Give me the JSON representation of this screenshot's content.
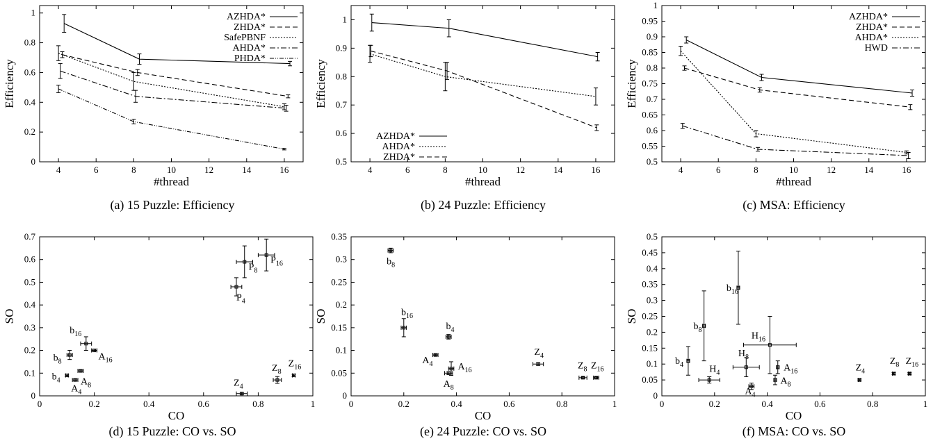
{
  "chart_data": [
    {
      "id": "a",
      "type": "line",
      "caption": "(a) 15 Puzzle: Efficiency",
      "xlabel": "#thread",
      "ylabel": "Efficiency",
      "xlim": [
        3,
        17
      ],
      "ylim": [
        0,
        1.05
      ],
      "xticks": [
        4,
        6,
        8,
        10,
        12,
        14,
        16
      ],
      "yticks": [
        0,
        0.2,
        0.4,
        0.6,
        0.8,
        1
      ],
      "legend_position": "top-right",
      "series": [
        {
          "name": "AZHDA*",
          "dash": "",
          "points": [
            {
              "x": 4.3,
              "y": 0.93,
              "err": 0.06
            },
            {
              "x": 8.3,
              "y": 0.69,
              "err": 0.035
            },
            {
              "x": 16.3,
              "y": 0.66,
              "err": 0.015
            }
          ]
        },
        {
          "name": "ZHDA*",
          "dash": "7,4",
          "points": [
            {
              "x": 4.2,
              "y": 0.72,
              "err": 0.02
            },
            {
              "x": 8.2,
              "y": 0.6,
              "err": 0.02
            },
            {
              "x": 16.2,
              "y": 0.44,
              "err": 0.01
            }
          ]
        },
        {
          "name": "SafePBNF",
          "dash": "2,2",
          "points": [
            {
              "x": 4.0,
              "y": 0.73,
              "err": 0.05
            },
            {
              "x": 8.0,
              "y": 0.54,
              "err": 0.06
            },
            {
              "x": 16.0,
              "y": 0.37,
              "err": 0.02
            }
          ]
        },
        {
          "name": "AHDA*",
          "dash": "8,3,2,3",
          "points": [
            {
              "x": 4.1,
              "y": 0.61,
              "err": 0.05
            },
            {
              "x": 8.1,
              "y": 0.44,
              "err": 0.04
            },
            {
              "x": 16.1,
              "y": 0.36,
              "err": 0.02
            }
          ]
        },
        {
          "name": "PHDA*",
          "dash": "6,2,1,2,1,2",
          "points": [
            {
              "x": 4.0,
              "y": 0.49,
              "err": 0.025
            },
            {
              "x": 8.0,
              "y": 0.27,
              "err": 0.015
            },
            {
              "x": 16.0,
              "y": 0.085,
              "err": 0.005
            }
          ]
        }
      ]
    },
    {
      "id": "b",
      "type": "line",
      "caption": "(b) 24 Puzzle: Efficiency",
      "xlabel": "#thread",
      "ylabel": "Efficiency",
      "xlim": [
        3,
        17
      ],
      "ylim": [
        0.5,
        1.05
      ],
      "xticks": [
        4,
        6,
        8,
        10,
        12,
        14,
        16
      ],
      "yticks": [
        0.5,
        0.6,
        0.7,
        0.8,
        0.9,
        1
      ],
      "legend_position": "bottom-left",
      "series": [
        {
          "name": "AZHDA*",
          "dash": "",
          "points": [
            {
              "x": 4.1,
              "y": 0.99,
              "err": 0.03
            },
            {
              "x": 8.2,
              "y": 0.97,
              "err": 0.03
            },
            {
              "x": 16.1,
              "y": 0.87,
              "err": 0.015
            }
          ]
        },
        {
          "name": "AHDA*",
          "dash": "2,2",
          "points": [
            {
              "x": 4.0,
              "y": 0.88,
              "err": 0.03
            },
            {
              "x": 8.0,
              "y": 0.8,
              "err": 0.05
            },
            {
              "x": 16.0,
              "y": 0.73,
              "err": 0.03
            }
          ]
        },
        {
          "name": "ZHDA*",
          "dash": "7,4",
          "points": [
            {
              "x": 4.05,
              "y": 0.89,
              "err": 0.02
            },
            {
              "x": 8.1,
              "y": 0.82,
              "err": 0.03
            },
            {
              "x": 16.05,
              "y": 0.62,
              "err": 0.01
            }
          ]
        }
      ]
    },
    {
      "id": "c",
      "type": "line",
      "caption": "(c) MSA: Efficiency",
      "xlabel": "#thread",
      "ylabel": "Efficiency",
      "xlim": [
        3,
        17
      ],
      "ylim": [
        0.5,
        1.0
      ],
      "xticks": [
        4,
        6,
        8,
        10,
        12,
        14,
        16
      ],
      "yticks": [
        0.5,
        0.55,
        0.6,
        0.65,
        0.7,
        0.75,
        0.8,
        0.85,
        0.9,
        0.95,
        1
      ],
      "legend_position": "top-right",
      "series": [
        {
          "name": "AZHDA*",
          "dash": "",
          "points": [
            {
              "x": 4.3,
              "y": 0.89,
              "err": 0.01
            },
            {
              "x": 8.3,
              "y": 0.77,
              "err": 0.01
            },
            {
              "x": 16.3,
              "y": 0.72,
              "err": 0.01
            }
          ]
        },
        {
          "name": "ZHDA*",
          "dash": "7,4",
          "points": [
            {
              "x": 4.2,
              "y": 0.8,
              "err": 0.007
            },
            {
              "x": 8.2,
              "y": 0.73,
              "err": 0.007
            },
            {
              "x": 16.2,
              "y": 0.675,
              "err": 0.008
            }
          ]
        },
        {
          "name": "AHDA*",
          "dash": "2,2",
          "points": [
            {
              "x": 4.0,
              "y": 0.855,
              "err": 0.015
            },
            {
              "x": 8.0,
              "y": 0.59,
              "err": 0.01
            },
            {
              "x": 16.0,
              "y": 0.53,
              "err": 0.005
            }
          ]
        },
        {
          "name": "HWD",
          "dash": "8,3,2,3",
          "points": [
            {
              "x": 4.1,
              "y": 0.615,
              "err": 0.008
            },
            {
              "x": 8.1,
              "y": 0.54,
              "err": 0.006
            },
            {
              "x": 16.1,
              "y": 0.52,
              "err": 0.01
            }
          ]
        }
      ]
    },
    {
      "id": "d",
      "type": "scatter",
      "caption": "(d) 15 Puzzle: CO vs. SO",
      "xlabel": "CO",
      "ylabel": "SO",
      "xlim": [
        0,
        1
      ],
      "ylim": [
        0,
        0.7
      ],
      "xticks": [
        0,
        0.2,
        0.4,
        0.6,
        0.8,
        1
      ],
      "yticks": [
        0,
        0.1,
        0.2,
        0.3,
        0.4,
        0.5,
        0.6,
        0.7
      ],
      "points": [
        {
          "base": "b",
          "sub": "4",
          "x": 0.1,
          "y": 0.09,
          "xerr": 0.005,
          "yerr": 0.005,
          "lx": -0.055,
          "ly": -0.018
        },
        {
          "base": "b",
          "sub": "8",
          "x": 0.11,
          "y": 0.18,
          "xerr": 0.01,
          "yerr": 0.02,
          "lx": -0.06,
          "ly": -0.025
        },
        {
          "base": "b",
          "sub": "16",
          "x": 0.17,
          "y": 0.23,
          "xerr": 0.02,
          "yerr": 0.03,
          "lx": -0.06,
          "ly": 0.045
        },
        {
          "base": "A",
          "sub": "4",
          "x": 0.13,
          "y": 0.07,
          "xerr": 0.01,
          "yerr": 0.005,
          "lx": -0.015,
          "ly": -0.05
        },
        {
          "base": "A",
          "sub": "8",
          "x": 0.15,
          "y": 0.11,
          "xerr": 0.01,
          "yerr": 0.005,
          "lx": 0.0,
          "ly": -0.06
        },
        {
          "base": "A",
          "sub": "16",
          "x": 0.2,
          "y": 0.2,
          "xerr": 0.01,
          "yerr": 0.005,
          "lx": 0.015,
          "ly": -0.04
        },
        {
          "base": "P",
          "sub": "4",
          "x": 0.72,
          "y": 0.48,
          "xerr": 0.02,
          "yerr": 0.04,
          "lx": 0.0,
          "ly": -0.06
        },
        {
          "base": "P",
          "sub": "8",
          "x": 0.75,
          "y": 0.59,
          "xerr": 0.03,
          "yerr": 0.07,
          "lx": 0.015,
          "ly": -0.035
        },
        {
          "base": "P",
          "sub": "16",
          "x": 0.83,
          "y": 0.62,
          "xerr": 0.03,
          "yerr": 0.07,
          "lx": 0.015,
          "ly": -0.035
        },
        {
          "base": "Z",
          "sub": "4",
          "x": 0.74,
          "y": 0.01,
          "xerr": 0.02,
          "yerr": 0.005,
          "lx": -0.03,
          "ly": 0.035
        },
        {
          "base": "Z",
          "sub": "8",
          "x": 0.87,
          "y": 0.07,
          "xerr": 0.015,
          "yerr": 0.015,
          "lx": -0.02,
          "ly": 0.04
        },
        {
          "base": "Z",
          "sub": "16",
          "x": 0.93,
          "y": 0.09,
          "xerr": 0.005,
          "yerr": 0.005,
          "lx": -0.02,
          "ly": 0.04
        }
      ]
    },
    {
      "id": "e",
      "type": "scatter",
      "caption": "(e) 24 Puzzle: CO vs. SO",
      "xlabel": "CO",
      "ylabel": "SO",
      "xlim": [
        0,
        1
      ],
      "ylim": [
        0,
        0.35
      ],
      "xticks": [
        0,
        0.2,
        0.4,
        0.6,
        0.8,
        1
      ],
      "yticks": [
        0,
        0.05,
        0.1,
        0.15,
        0.2,
        0.25,
        0.3,
        0.35
      ],
      "points": [
        {
          "base": "b",
          "sub": "8",
          "x": 0.15,
          "y": 0.32,
          "xerr": 0.01,
          "yerr": 0.005,
          "lx": -0.015,
          "ly": -0.03
        },
        {
          "base": "b",
          "sub": "16",
          "x": 0.2,
          "y": 0.15,
          "xerr": 0.01,
          "yerr": 0.02,
          "lx": -0.01,
          "ly": 0.027
        },
        {
          "base": "b",
          "sub": "4",
          "x": 0.37,
          "y": 0.13,
          "xerr": 0.01,
          "yerr": 0.005,
          "lx": -0.01,
          "ly": 0.017
        },
        {
          "base": "A",
          "sub": "4",
          "x": 0.32,
          "y": 0.09,
          "xerr": 0.01,
          "yerr": 0.002,
          "lx": -0.05,
          "ly": -0.018
        },
        {
          "base": "A",
          "sub": "8",
          "x": 0.37,
          "y": 0.05,
          "xerr": 0.015,
          "yerr": 0.003,
          "lx": -0.02,
          "ly": -0.03
        },
        {
          "base": "A",
          "sub": "16",
          "x": 0.38,
          "y": 0.06,
          "xerr": 0.01,
          "yerr": 0.015,
          "lx": 0.025,
          "ly": -0.002
        },
        {
          "base": "Z",
          "sub": "4",
          "x": 0.71,
          "y": 0.07,
          "xerr": 0.02,
          "yerr": 0.003,
          "lx": -0.015,
          "ly": 0.02
        },
        {
          "base": "Z",
          "sub": "8",
          "x": 0.88,
          "y": 0.04,
          "xerr": 0.015,
          "yerr": 0.002,
          "lx": -0.02,
          "ly": 0.02
        },
        {
          "base": "Z",
          "sub": "16",
          "x": 0.93,
          "y": 0.04,
          "xerr": 0.01,
          "yerr": 0.002,
          "lx": -0.02,
          "ly": 0.02
        }
      ]
    },
    {
      "id": "f",
      "type": "scatter",
      "caption": "(f) MSA: CO vs. SO",
      "xlabel": "CO",
      "ylabel": "SO",
      "xlim": [
        0,
        1
      ],
      "ylim": [
        0,
        0.5
      ],
      "xticks": [
        0,
        0.2,
        0.4,
        0.6,
        0.8,
        1
      ],
      "yticks": [
        0,
        0.05,
        0.1,
        0.15,
        0.2,
        0.25,
        0.3,
        0.35,
        0.4,
        0.45,
        0.5
      ],
      "points": [
        {
          "base": "b",
          "sub": "4",
          "x": 0.1,
          "y": 0.11,
          "xerr": 0.005,
          "yerr": 0.045,
          "lx": -0.05,
          "ly": -0.01
        },
        {
          "base": "b",
          "sub": "8",
          "x": 0.16,
          "y": 0.22,
          "xerr": 0.005,
          "yerr": 0.11,
          "lx": -0.04,
          "ly": -0.01
        },
        {
          "base": "b",
          "sub": "16",
          "x": 0.29,
          "y": 0.34,
          "xerr": 0.005,
          "yerr": 0.115,
          "lx": -0.045,
          "ly": -0.01
        },
        {
          "base": "H",
          "sub": "4",
          "x": 0.18,
          "y": 0.05,
          "xerr": 0.04,
          "yerr": 0.01,
          "lx": 0.0,
          "ly": 0.025
        },
        {
          "base": "H",
          "sub": "8",
          "x": 0.32,
          "y": 0.09,
          "xerr": 0.05,
          "yerr": 0.03,
          "lx": -0.03,
          "ly": 0.035
        },
        {
          "base": "H",
          "sub": "16",
          "x": 0.41,
          "y": 0.16,
          "xerr": 0.1,
          "yerr": 0.09,
          "lx": -0.07,
          "ly": 0.02
        },
        {
          "base": "A",
          "sub": "4",
          "x": 0.34,
          "y": 0.03,
          "xerr": 0.01,
          "yerr": 0.01,
          "lx": -0.025,
          "ly": -0.025
        },
        {
          "base": "A",
          "sub": "8",
          "x": 0.43,
          "y": 0.05,
          "xerr": 0.005,
          "yerr": 0.015,
          "lx": 0.02,
          "ly": -0.012
        },
        {
          "base": "A",
          "sub": "16",
          "x": 0.44,
          "y": 0.09,
          "xerr": 0.005,
          "yerr": 0.02,
          "lx": 0.022,
          "ly": -0.01
        },
        {
          "base": "Z",
          "sub": "4",
          "x": 0.75,
          "y": 0.05,
          "xerr": 0.005,
          "yerr": 0.003,
          "lx": -0.015,
          "ly": 0.03
        },
        {
          "base": "Z",
          "sub": "8",
          "x": 0.88,
          "y": 0.07,
          "xerr": 0.005,
          "yerr": 0.003,
          "lx": -0.015,
          "ly": 0.03
        },
        {
          "base": "Z",
          "sub": "16",
          "x": 0.94,
          "y": 0.07,
          "xerr": 0.005,
          "yerr": 0.003,
          "lx": -0.015,
          "ly": 0.03
        }
      ]
    }
  ]
}
